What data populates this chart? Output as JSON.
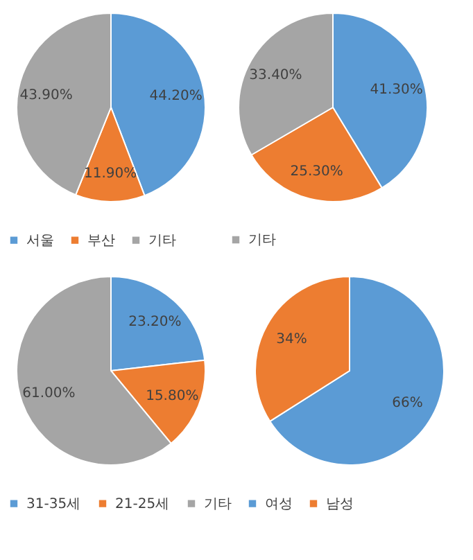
{
  "chart_data": [
    {
      "type": "pie",
      "categories": [
        "서울",
        "부산",
        "기타"
      ],
      "values": [
        44.2,
        11.9,
        43.9
      ],
      "colors": [
        "#5b9bd5",
        "#ed7d31",
        "#a5a5a5"
      ],
      "value_labels": [
        "44.20%",
        "11.90%",
        "43.90%"
      ],
      "legend": "bottom"
    },
    {
      "type": "pie",
      "categories": [
        null,
        null,
        "기타"
      ],
      "values": [
        41.3,
        25.3,
        33.4
      ],
      "colors": [
        "#5b9bd5",
        "#ed7d31",
        "#a5a5a5"
      ],
      "value_labels": [
        "41.30%",
        "25.30%",
        "33.40%"
      ],
      "legend": "bottom"
    },
    {
      "type": "pie",
      "categories": [
        "31-35세",
        "21-25세",
        "기타"
      ],
      "values": [
        23.2,
        15.8,
        61.0
      ],
      "colors": [
        "#5b9bd5",
        "#ed7d31",
        "#a5a5a5"
      ],
      "value_labels": [
        "23.20%",
        "15.80%",
        "61.00%"
      ],
      "legend": "bottom"
    },
    {
      "type": "pie",
      "categories": [
        "여성",
        "남성"
      ],
      "values": [
        66,
        34
      ],
      "colors": [
        "#5b9bd5",
        "#ed7d31"
      ],
      "value_labels": [
        "66%",
        "34%"
      ],
      "legend": "bottom"
    }
  ]
}
